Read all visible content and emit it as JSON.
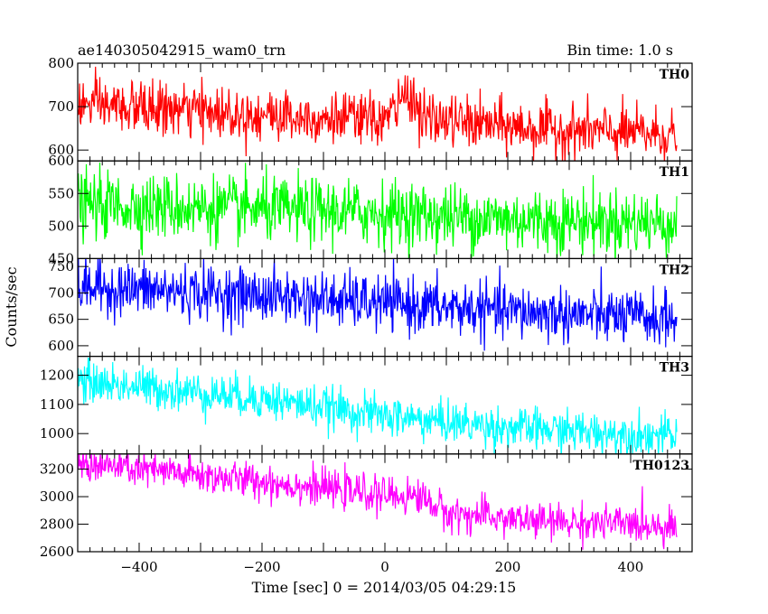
{
  "header": {
    "title": "ae140305042915_wam0_trn",
    "bin_time": "Bin time: 1.0 s"
  },
  "axes": {
    "xlabel": "Time [sec] 0 = 2014/03/05 04:29:15",
    "ylabel": "Counts/sec"
  },
  "chart_data": {
    "type": "line",
    "title": "ae140305042915_wam0_trn",
    "xlabel": "Time [sec] 0 = 2014/03/05 04:29:15",
    "ylabel": "Counts/sec",
    "xlim": [
      -500,
      500
    ],
    "xticks": [
      -400,
      -200,
      0,
      200,
      400
    ],
    "x_start": -500,
    "x_end": 475,
    "x_step": 1,
    "grid": false,
    "legend": "none",
    "panels": [
      {
        "name": "TH0",
        "color": "#ff0000",
        "ylim": [
          575,
          800
        ],
        "yticks": [
          600,
          700,
          800
        ],
        "trend_x": [
          -500,
          -250,
          0,
          20,
          40,
          60,
          250,
          475
        ],
        "trend_y": [
          705,
          685,
          668,
          700,
          740,
          672,
          648,
          635
        ],
        "noise_sd": 30
      },
      {
        "name": "TH1",
        "color": "#00ff00",
        "ylim": [
          450,
          600
        ],
        "yticks": [
          450,
          500,
          550,
          600
        ],
        "trend_x": [
          -500,
          -200,
          0,
          200,
          475
        ],
        "trend_y": [
          533,
          525,
          520,
          510,
          505
        ],
        "noise_sd": 25
      },
      {
        "name": "TH2",
        "color": "#0000ff",
        "ylim": [
          580,
          765
        ],
        "yticks": [
          600,
          650,
          700,
          750
        ],
        "trend_x": [
          -500,
          -200,
          0,
          200,
          475
        ],
        "trend_y": [
          712,
          695,
          680,
          665,
          650
        ],
        "noise_sd": 26
      },
      {
        "name": "TH3",
        "color": "#00ffff",
        "ylim": [
          930,
          1265
        ],
        "yticks": [
          1000,
          1100,
          1200
        ],
        "trend_x": [
          -500,
          -200,
          0,
          200,
          475
        ],
        "trend_y": [
          1180,
          1120,
          1060,
          1020,
          990
        ],
        "noise_sd": 35
      },
      {
        "name": "TH0123",
        "color": "#ff00ff",
        "ylim": [
          2600,
          3310
        ],
        "yticks": [
          2600,
          2800,
          3000,
          3200
        ],
        "trend_x": [
          -500,
          -200,
          0,
          60,
          100,
          250,
          475
        ],
        "trend_y": [
          3240,
          3110,
          3010,
          3000,
          2880,
          2820,
          2790
        ],
        "noise_sd": 65
      }
    ]
  }
}
